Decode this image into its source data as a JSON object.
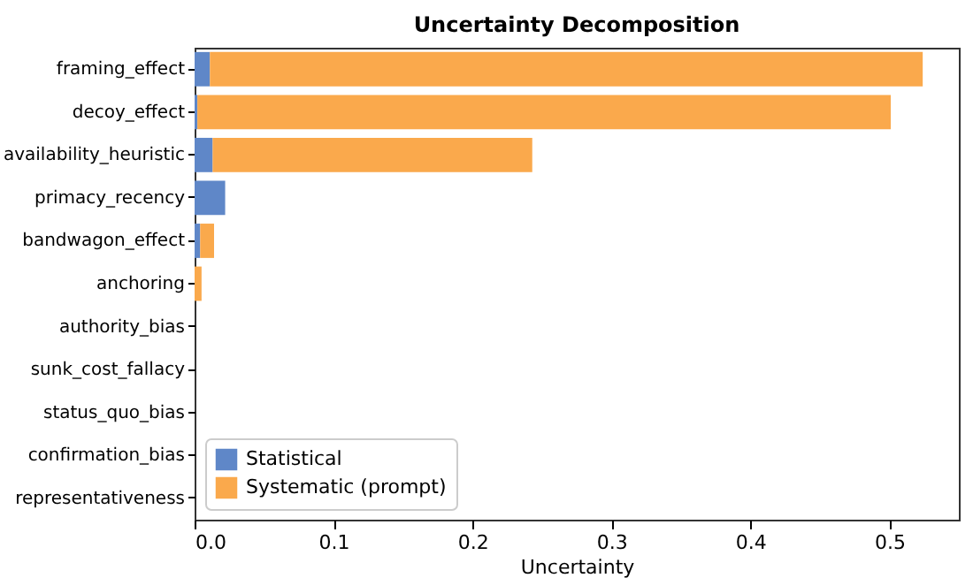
{
  "chart_data": {
    "type": "bar",
    "orientation": "horizontal",
    "stacked": true,
    "title": "Uncertainty Decomposition",
    "xlabel": "Uncertainty",
    "categories": [
      "framing_effect",
      "decoy_effect",
      "availability_heuristic",
      "primacy_recency",
      "bandwagon_effect",
      "anchoring",
      "authority_bias",
      "sunk_cost_fallacy",
      "status_quo_bias",
      "confirmation_bias",
      "representativeness"
    ],
    "series": [
      {
        "name": "Statistical",
        "color": "#5f87c8",
        "values": [
          0.011,
          0.002,
          0.013,
          0.022,
          0.004,
          0,
          0,
          0,
          0,
          0,
          0
        ]
      },
      {
        "name": "Systematic (prompt)",
        "color": "#faa94c",
        "values": [
          0.513,
          0.499,
          0.23,
          0,
          0.01,
          0.005,
          0,
          0,
          0,
          0,
          0
        ]
      }
    ],
    "xlim": [
      0,
      0.55
    ],
    "xticks": [
      {
        "value": 0,
        "label": "0.0"
      },
      {
        "value": 0.1,
        "label": "0.1"
      },
      {
        "value": 0.2,
        "label": "0.2"
      },
      {
        "value": 0.3,
        "label": "0.3"
      },
      {
        "value": 0.4,
        "label": "0.4"
      },
      {
        "value": 0.5,
        "label": "0.5"
      }
    ],
    "legend": "bottom left",
    "grid": false
  }
}
